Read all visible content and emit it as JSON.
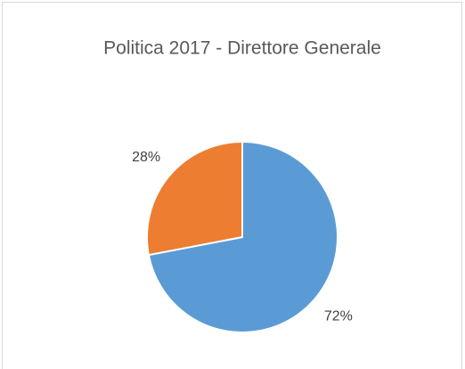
{
  "chart_data": {
    "type": "pie",
    "title": "Politica 2017 - Direttore Generale",
    "values": [
      72,
      28
    ],
    "value_labels": [
      "72%",
      "28%"
    ],
    "colors": [
      "#5b9bd5",
      "#ed7d31"
    ]
  }
}
